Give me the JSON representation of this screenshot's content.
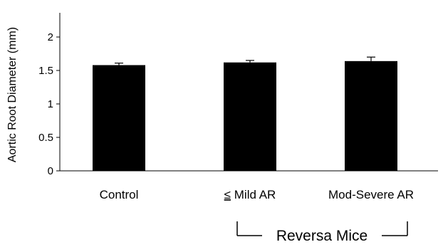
{
  "chart_data": {
    "type": "bar",
    "title": "",
    "ylabel": "Aortic Root Diameter (mm)",
    "xlabel": "",
    "categories": [
      "Control",
      "Mild AR",
      "Mod-Severe AR"
    ],
    "category_prefix": [
      "",
      "≤",
      ""
    ],
    "values": [
      1.58,
      1.62,
      1.64
    ],
    "errors": [
      0.03,
      0.03,
      0.06
    ],
    "ylim": [
      0,
      2.2
    ],
    "yticks": [
      "0",
      "0.5",
      "1",
      "1.5",
      "2"
    ],
    "ytick_values": [
      0,
      0.5,
      1,
      1.5,
      2
    ],
    "grid": false,
    "bar_color": "#000000",
    "group_label": "Reversa Mice",
    "group_categories": [
      "Mild AR",
      "Mod-Severe AR"
    ]
  }
}
